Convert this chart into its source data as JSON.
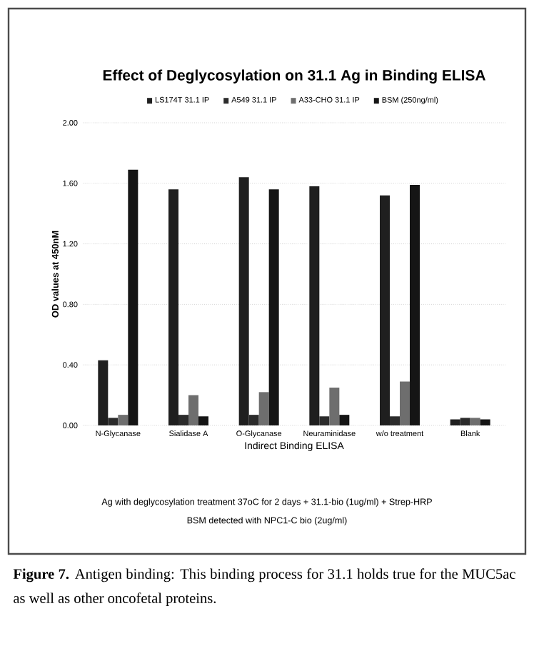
{
  "chart_data": {
    "type": "bar",
    "title": "Effect of Deglycosylation on 31.1 Ag  in Binding ELISA",
    "xlabel": "Indirect Binding ELISA",
    "ylabel": "OD values at 450nM",
    "categories": [
      "N-Glycanase",
      "Sialidase A",
      "O-Glycanase",
      "Neuraminidase",
      "w/o treatment",
      "Blank"
    ],
    "series": [
      {
        "name": "LS174T 31.1 IP",
        "color": "#1f1f1f",
        "values": [
          0.43,
          1.56,
          1.64,
          1.58,
          1.52,
          0.04
        ]
      },
      {
        "name": "A549 31.1 IP",
        "color": "#2b2b2b",
        "values": [
          0.05,
          0.07,
          0.07,
          0.06,
          0.06,
          0.05
        ]
      },
      {
        "name": "A33-CHO 31.1 IP",
        "color": "#6e6e6e",
        "values": [
          0.07,
          0.2,
          0.22,
          0.25,
          0.29,
          0.05
        ]
      },
      {
        "name": "BSM (250ng/ml)",
        "color": "#151515",
        "values": [
          1.69,
          0.06,
          1.56,
          0.07,
          1.59,
          0.04
        ]
      }
    ],
    "ylim": [
      0,
      2
    ],
    "yticks": [
      {
        "value": 0,
        "label": "0.00"
      },
      {
        "value": 0.4,
        "label": "0.40"
      },
      {
        "value": 0.8,
        "label": "0.80"
      },
      {
        "value": 1.2,
        "label": "1.20"
      },
      {
        "value": 1.6,
        "label": "1.60"
      },
      {
        "value": 2,
        "label": "2.00"
      }
    ],
    "grid": "y",
    "legend": "top",
    "annotations": [
      "Ag with deglycosylation treatment 37oC for 2 days + 31.1-bio (1ug/ml) + Strep-HRP",
      "BSM detected with NPC1-C bio (2ug/ml)",
      "**Figure 7.** Antigen binding: This binding process for 31.1 holds true for the MUC5ac as well as other oncofetal proteins."
    ]
  }
}
